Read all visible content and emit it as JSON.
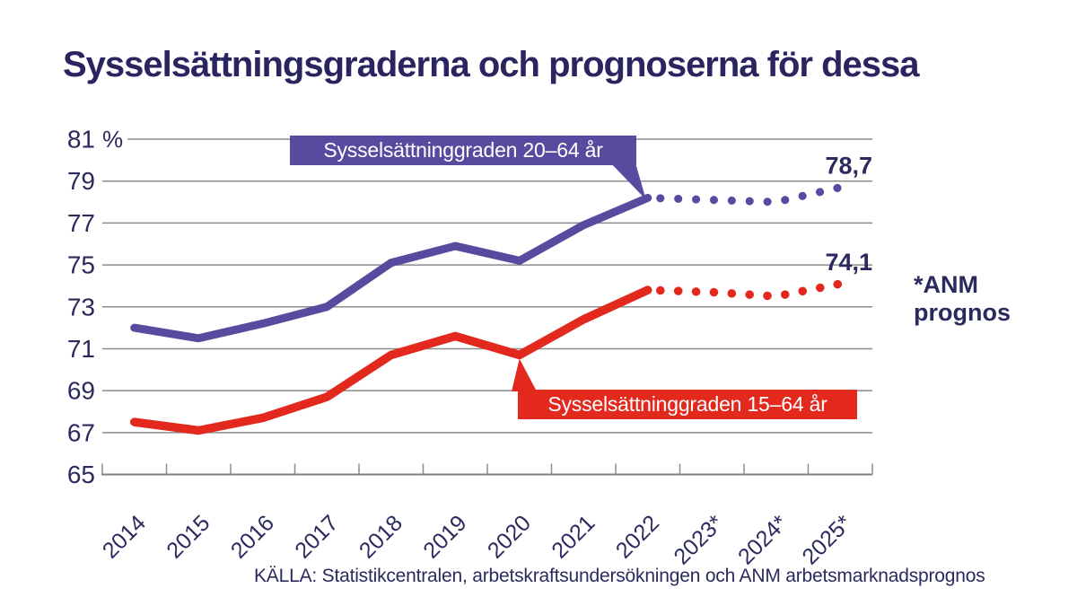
{
  "title": "Sysselsättningsgraderna och prognoserna för dessa",
  "source": "KÄLLA: Statistikcentralen, arbetskraftsundersökningen och ANM arbetsmarknadsprognos",
  "annotation": {
    "line1": "*ANM",
    "line2": "prognos"
  },
  "colors": {
    "purple": "#5a4a9f",
    "red": "#e3281d",
    "navy": "#2b2a5e",
    "title_navy": "#2a2560",
    "grid": "#8c8c8c",
    "axis": "#7f7f7f",
    "background": "#ffffff"
  },
  "chart_data": {
    "type": "line",
    "title": "Sysselsättningsgraderna och prognoserna för dessa",
    "categories": [
      "2014",
      "2015",
      "2016",
      "2017",
      "2018",
      "2019",
      "2020",
      "2021",
      "2022",
      "2023*",
      "2024*",
      "2025*"
    ],
    "y_axis": {
      "unit": "%",
      "ticks": [
        81,
        79,
        77,
        75,
        73,
        71,
        69,
        67,
        65
      ],
      "range": [
        65,
        81
      ]
    },
    "grid": true,
    "forecast_note": "*ANM prognos",
    "forecast_start_index": 8,
    "series": [
      {
        "name": "Sysselsättninggraden 20–64 år",
        "color": "#5a4a9f",
        "values": [
          72.0,
          71.5,
          72.2,
          73.0,
          75.1,
          75.9,
          75.2,
          76.9,
          78.2,
          78.1,
          78.0,
          78.7
        ],
        "end_label": "78,7",
        "line_width": 9
      },
      {
        "name": "Sysselsättninggraden 15–64 år",
        "color": "#e3281d",
        "values": [
          67.5,
          67.1,
          67.7,
          68.7,
          70.7,
          71.6,
          70.7,
          72.4,
          73.8,
          73.7,
          73.5,
          74.1
        ],
        "end_label": "74,1",
        "line_width": 9.5
      }
    ]
  }
}
